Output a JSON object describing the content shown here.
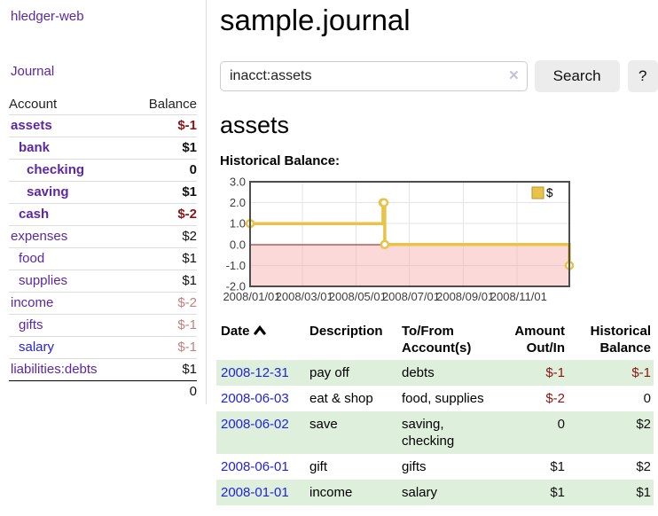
{
  "app": {
    "title": "hledger-web"
  },
  "sidebar": {
    "journal_label": "Journal",
    "accounts_table": {
      "headers": {
        "account": "Account",
        "balance": "Balance"
      },
      "rows": [
        {
          "name": "assets",
          "balance": "$-1",
          "depth": 1,
          "bold": true,
          "neg": "strong",
          "link_color": "purple"
        },
        {
          "name": "bank",
          "balance": "$1",
          "depth": 2,
          "bold": true,
          "neg": "none",
          "link_color": "purple"
        },
        {
          "name": "checking",
          "balance": "0",
          "depth": 3,
          "bold": true,
          "neg": "none",
          "link_color": "purple"
        },
        {
          "name": "saving",
          "balance": "$1",
          "depth": 3,
          "bold": true,
          "neg": "none",
          "link_color": "purple"
        },
        {
          "name": "cash",
          "balance": "$-2",
          "depth": 2,
          "bold": true,
          "neg": "strong",
          "link_color": "purple"
        },
        {
          "name": "expenses",
          "balance": "$2",
          "depth": 1,
          "bold": false,
          "neg": "none",
          "link_color": "purple"
        },
        {
          "name": "food",
          "balance": "$1",
          "depth": 2,
          "bold": false,
          "neg": "none",
          "link_color": "purple"
        },
        {
          "name": "supplies",
          "balance": "$1",
          "depth": 2,
          "bold": false,
          "neg": "none",
          "link_color": "purple"
        },
        {
          "name": "income",
          "balance": "$-2",
          "depth": 1,
          "bold": false,
          "neg": "muted",
          "link_color": "purple"
        },
        {
          "name": "gifts",
          "balance": "$-1",
          "depth": 2,
          "bold": false,
          "neg": "muted",
          "link_color": "purple"
        },
        {
          "name": "salary",
          "balance": "$-1",
          "depth": 2,
          "bold": false,
          "neg": "muted",
          "link_color": "blue"
        },
        {
          "name": "liabilities:debts",
          "balance": "$1",
          "depth": 1,
          "bold": false,
          "neg": "none",
          "link_color": "purple"
        }
      ],
      "total": "0"
    }
  },
  "main": {
    "page_title": "sample.journal",
    "search": {
      "value": "inacct:assets",
      "clear_glyph": "✕",
      "clear_icon": "clear-icon",
      "button_label": "Search",
      "help_label": "?"
    },
    "account_heading": "assets",
    "chart_label": "Historical Balance:"
  },
  "chart_data": {
    "type": "line",
    "title": "Historical Balance",
    "steps": true,
    "series": [
      {
        "name": "$",
        "x_days": [
          0,
          152,
          153,
          154,
          365
        ],
        "dates": [
          "2008-01-01",
          "2008-06-01",
          "2008-06-02",
          "2008-06-03",
          "2008-12-31"
        ],
        "values": [
          1.0,
          2.0,
          2.0,
          0.0,
          -1.0
        ]
      }
    ],
    "x_tick_labels": [
      "2008/01/01",
      "2008/03/01",
      "2008/05/01",
      "2008/07/01",
      "2008/09/01",
      "2008/11/01"
    ],
    "x_tick_days": [
      0,
      60,
      121,
      182,
      244,
      305
    ],
    "y_tick_labels": [
      "3.0",
      "2.0",
      "1.0",
      "0.0",
      "-1.0",
      "-2.0"
    ],
    "y_ticks": [
      3,
      2,
      1,
      0,
      -1,
      -2
    ],
    "ylim": [
      -2,
      3
    ],
    "xlim_days": [
      0,
      365
    ],
    "grid": true,
    "legend": {
      "position": "top-right",
      "label": "$"
    },
    "colors": {
      "line": "#e9c24a",
      "marker_fill": "#ffffff",
      "legend_box_border": "#b8962e",
      "negative_region": "#f7aaaa",
      "zero_line": "#8b1414",
      "plot_border": "#4d4d4d",
      "gridline": "#e4e4e4"
    }
  },
  "register_table": {
    "headers": {
      "date": "Date",
      "description": "Description",
      "accounts": "To/From Account(s)",
      "amount": "Amount Out/In",
      "balance": "Historical Balance"
    },
    "sort_icon": "chevron-up",
    "rows": [
      {
        "date": "2008-12-31",
        "description": "pay off",
        "accounts": "debts",
        "amount": "$-1",
        "balance": "$-1",
        "amount_neg": true,
        "balance_neg": true,
        "green": true
      },
      {
        "date": "2008-06-03",
        "description": "eat & shop",
        "accounts": "food, supplies",
        "amount": "$-2",
        "balance": "0",
        "amount_neg": true,
        "balance_neg": false,
        "green": false
      },
      {
        "date": "2008-06-02",
        "description": "save",
        "accounts": "saving, checking",
        "amount": "0",
        "balance": "$2",
        "amount_neg": false,
        "balance_neg": false,
        "green": true
      },
      {
        "date": "2008-06-01",
        "description": "gift",
        "accounts": "gifts",
        "amount": "$1",
        "balance": "$2",
        "amount_neg": false,
        "balance_neg": false,
        "green": false
      },
      {
        "date": "2008-01-01",
        "description": "income",
        "accounts": "salary",
        "amount": "$1",
        "balance": "$1",
        "amount_neg": false,
        "balance_neg": false,
        "green": true
      }
    ]
  },
  "colors": {
    "link_purple": "#5b27a5",
    "link_blue": "#2222dd",
    "negative_strong": "#8b1414",
    "negative_muted": "#c47f7f",
    "row_green": "#def0dc",
    "chart_gold": "#e9c24a"
  }
}
